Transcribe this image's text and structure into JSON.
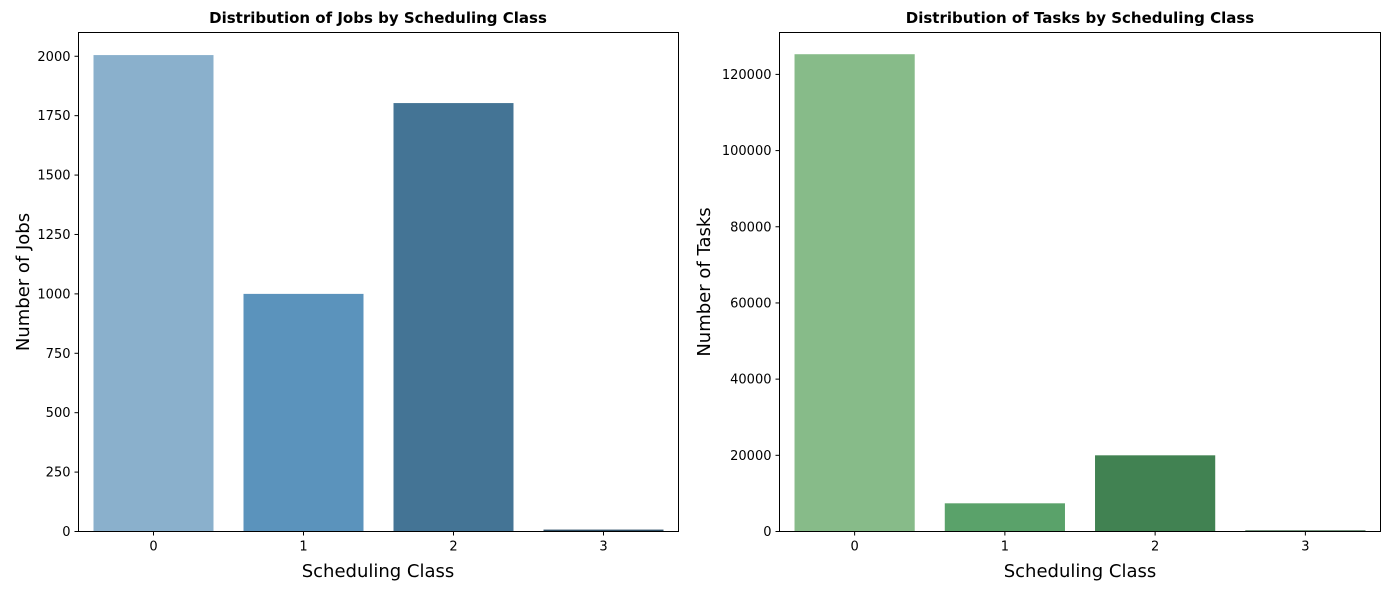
{
  "chart_data": [
    {
      "type": "bar",
      "title": "Distribution of Jobs by Scheduling Class",
      "xlabel": "Scheduling Class",
      "ylabel": "Number of Jobs",
      "categories": [
        "0",
        "1",
        "2",
        "3"
      ],
      "values": [
        2005,
        1000,
        1803,
        8
      ],
      "ylim": [
        0,
        2100
      ],
      "yticks": [
        0,
        250,
        500,
        750,
        1000,
        1250,
        1500,
        1750,
        2000
      ],
      "colors": [
        "#8ab0cc",
        "#5b93bc",
        "#447495",
        "#2e4f66"
      ],
      "grid": false,
      "legend": "none"
    },
    {
      "type": "bar",
      "title": "Distribution of Tasks by Scheduling Class",
      "xlabel": "Scheduling Class",
      "ylabel": "Number of Tasks",
      "categories": [
        "0",
        "1",
        "2",
        "3"
      ],
      "values": [
        125300,
        7400,
        20000,
        300
      ],
      "ylim": [
        0,
        131000
      ],
      "yticks": [
        0,
        20000,
        40000,
        60000,
        80000,
        100000,
        120000
      ],
      "colors": [
        "#87bb89",
        "#5aa26a",
        "#418252",
        "#2a5836"
      ],
      "grid": false,
      "legend": "none"
    }
  ]
}
